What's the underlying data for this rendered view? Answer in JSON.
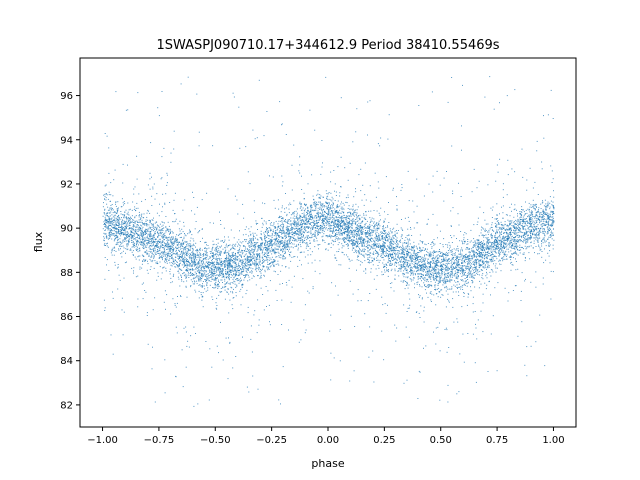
{
  "chart_data": {
    "type": "scatter",
    "title": "1SWASPJ090710.17+344612.9 Period 38410.55469s",
    "xlabel": "phase",
    "ylabel": "flux",
    "xlim": [
      -1.1,
      1.1
    ],
    "ylim": [
      81.0,
      97.7
    ],
    "xticks": [
      -1.0,
      -0.75,
      -0.5,
      -0.25,
      0.0,
      0.25,
      0.5,
      0.75,
      1.0
    ],
    "xtick_labels": [
      "−1.00",
      "−0.75",
      "−0.50",
      "−0.25",
      "0.00",
      "0.25",
      "0.50",
      "0.75",
      "1.00"
    ],
    "yticks": [
      82,
      84,
      86,
      88,
      90,
      92,
      94,
      96
    ],
    "ytick_labels": [
      "82",
      "84",
      "86",
      "88",
      "90",
      "92",
      "94",
      "96"
    ],
    "grid": false,
    "legend": "none",
    "marker_color": "#1f77b4",
    "trend": {
      "description": "phase-folded light curve, roughly sinusoidal",
      "x": [
        -1.0,
        -0.75,
        -0.55,
        -0.4,
        -0.25,
        -0.1,
        0.0,
        0.1,
        0.25,
        0.45,
        0.6,
        0.75,
        0.9,
        1.0
      ],
      "y": [
        90.3,
        89.4,
        88.2,
        88.3,
        89.3,
        90.2,
        90.5,
        89.9,
        89.2,
        88.1,
        88.3,
        89.4,
        90.1,
        90.4
      ]
    },
    "n_points_estimate": 9000
  }
}
